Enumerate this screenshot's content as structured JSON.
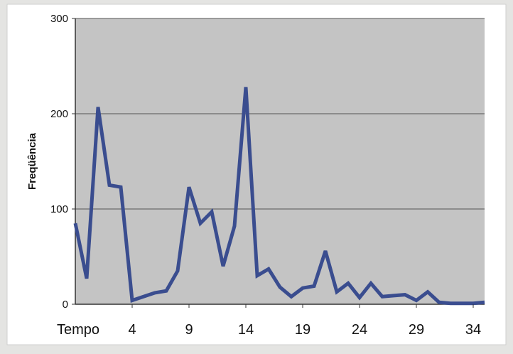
{
  "colors": {
    "page_background": "#e4e4e2",
    "frame_background": "#ffffff",
    "plot_background": "#c4c4c4",
    "gridline": "#555555",
    "series_line": "#3a4d8f"
  },
  "chart_data": {
    "type": "line",
    "title": "",
    "xlabel": "Tempo",
    "ylabel": "Freqüência",
    "ylim": [
      0,
      300
    ],
    "xlim": [
      -1,
      35
    ],
    "yticks": [
      0,
      100,
      200,
      300
    ],
    "xticks": [
      4,
      9,
      14,
      19,
      24,
      29,
      34
    ],
    "grid": "horizontal",
    "legend": "none",
    "series": [
      {
        "x": [
          -1,
          0,
          1,
          2,
          3,
          4,
          5,
          6,
          7,
          8,
          9,
          10,
          11,
          12,
          13,
          14,
          15,
          16,
          17,
          18,
          19,
          20,
          21,
          22,
          23,
          24,
          25,
          26,
          27,
          28,
          29,
          30,
          31,
          32,
          33,
          34,
          35
        ],
        "values": [
          85,
          27,
          207,
          125,
          123,
          4,
          8,
          12,
          14,
          35,
          123,
          85,
          97,
          40,
          82,
          228,
          30,
          37,
          18,
          8,
          17,
          19,
          56,
          13,
          22,
          7,
          22,
          8,
          9,
          10,
          4,
          13,
          2,
          1,
          1,
          1,
          2
        ]
      }
    ]
  }
}
